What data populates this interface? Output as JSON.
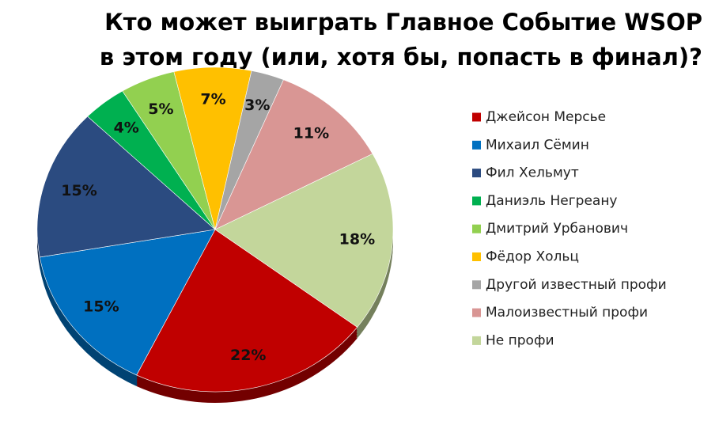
{
  "chart_data": {
    "type": "pie",
    "title": [
      "Кто может выиграть Главное Событие WSOP",
      "в этом году (или, хотя бы, попасть в финал)?"
    ],
    "categories": [
      "Джейсон Мерсье",
      "Михаил Сёмин",
      "Фил Хельмут",
      "Даниэль Негреану",
      "Дмитрий Урбанович",
      "Фёдор Хольц",
      "Другой известный профи",
      "Малоизвестный профи",
      "Не профи"
    ],
    "values": [
      22,
      15,
      15,
      4,
      5,
      7,
      3,
      11,
      18
    ],
    "value_labels": [
      "22%",
      "15%",
      "15%",
      "4%",
      "5%",
      "7%",
      "3%",
      "11%",
      "18%"
    ],
    "colors": [
      "#c00000",
      "#0070c0",
      "#2b4b80",
      "#00b050",
      "#92d050",
      "#ffc000",
      "#a5a5a5",
      "#d99694",
      "#c3d69b"
    ],
    "legend": "right"
  }
}
